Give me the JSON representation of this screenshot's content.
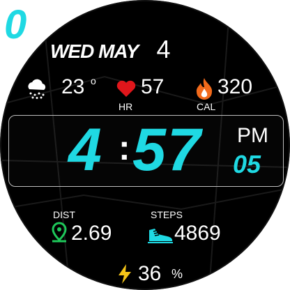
{
  "corner_indicator": "0",
  "date": {
    "weekday": "WED",
    "month": "MAY",
    "day": "4"
  },
  "weather": {
    "icon": "snow-cloud-icon",
    "temperature": "23",
    "unit": "o"
  },
  "heart_rate": {
    "icon": "heart-icon",
    "value": "57",
    "label": "HR"
  },
  "calories": {
    "icon": "flame-icon",
    "value": "320",
    "label": "CAL"
  },
  "time": {
    "hours": "4",
    "separator": ":",
    "minutes": "57",
    "ampm": "PM",
    "seconds": "05"
  },
  "distance": {
    "label": "DIST",
    "icon": "map-pin-icon",
    "value": "2.69"
  },
  "steps": {
    "label": "STEPS",
    "icon": "shoe-icon",
    "value": "4869"
  },
  "battery": {
    "icon": "lightning-icon",
    "value": "36",
    "unit": "%"
  },
  "colors": {
    "accent": "#1fd9e3",
    "heart": "#e0161b",
    "flame": "#f26a1b",
    "pin": "#1ec85a",
    "bolt": "#f5c518",
    "background": "#000000"
  }
}
